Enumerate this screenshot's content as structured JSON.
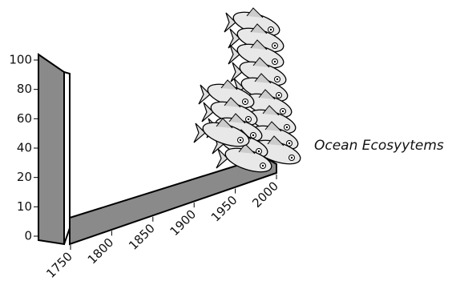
{
  "chart_data": {
    "type": "illustration",
    "annotation": "Ocean Ecosyytems",
    "xticks": [
      1750,
      1800,
      1850,
      1900,
      1950,
      2000
    ],
    "yticks": [
      0,
      10,
      20,
      40,
      60,
      80,
      100
    ]
  }
}
